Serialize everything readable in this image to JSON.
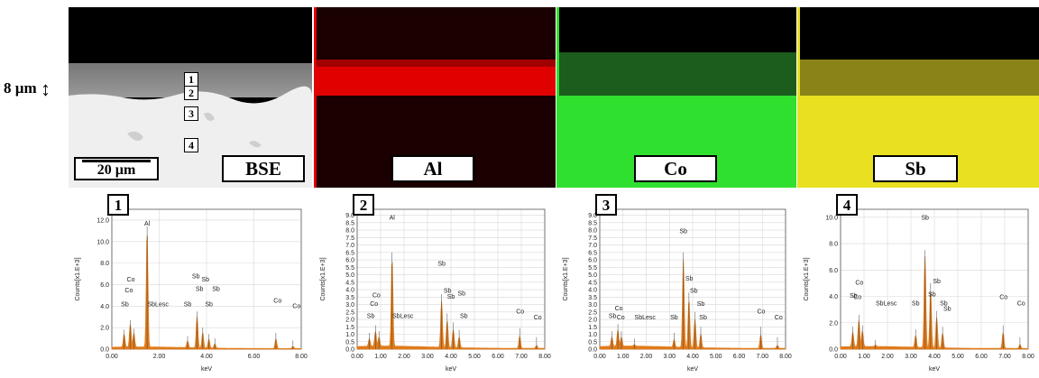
{
  "figure": {
    "thickness_label": "8 µm",
    "panels": [
      {
        "label": "BSE",
        "scalebar": "20 µm",
        "points": [
          "1",
          "2",
          "3",
          "4"
        ]
      },
      {
        "label": "Al"
      },
      {
        "label": "Co"
      },
      {
        "label": "Sb"
      }
    ],
    "colors": {
      "spectrum": "#e07b1a",
      "al_map": "#e00000",
      "co_map": "#2fe02f",
      "sb_map": "#e8e020"
    }
  },
  "chart_data": [
    {
      "type": "line",
      "panel_number": "1",
      "xlabel": "keV",
      "ylabel": "Counts[x1.E+3]",
      "xlim": [
        0,
        8
      ],
      "ylim": [
        0,
        13
      ],
      "x_ticks": [
        "0.00",
        "2.00",
        "4.00",
        "6.00",
        "8.00"
      ],
      "y_ticks": [
        "0.0",
        "2.0",
        "4.0",
        "6.0",
        "8.0",
        "10.0",
        "12.0"
      ],
      "peaks": [
        {
          "x": 0.52,
          "y": 1.2
        },
        {
          "x": 0.78,
          "y": 2.1
        },
        {
          "x": 0.93,
          "y": 1.3
        },
        {
          "x": 1.49,
          "y": 10.8
        },
        {
          "x": 3.2,
          "y": 0.6
        },
        {
          "x": 3.6,
          "y": 2.9
        },
        {
          "x": 3.84,
          "y": 1.4
        },
        {
          "x": 4.1,
          "y": 0.8
        },
        {
          "x": 4.35,
          "y": 0.4
        },
        {
          "x": 6.93,
          "y": 0.9
        },
        {
          "x": 7.65,
          "y": 0.2
        }
      ],
      "annotations": [
        {
          "text": "Al",
          "x": 1.49,
          "y": 11.5
        },
        {
          "text": "Co",
          "x": 0.8,
          "y": 6.3
        },
        {
          "text": "Co",
          "x": 0.72,
          "y": 5.3
        },
        {
          "text": "Sb",
          "x": 0.55,
          "y": 4.0
        },
        {
          "text": "SbLesc",
          "x": 1.95,
          "y": 4.0
        },
        {
          "text": "Sb",
          "x": 3.2,
          "y": 4.0
        },
        {
          "text": "Sb",
          "x": 3.55,
          "y": 6.6
        },
        {
          "text": "Sb",
          "x": 3.95,
          "y": 6.3
        },
        {
          "text": "Sb",
          "x": 3.7,
          "y": 5.4
        },
        {
          "text": "Sb",
          "x": 4.4,
          "y": 5.4
        },
        {
          "text": "Sb",
          "x": 4.1,
          "y": 4.0
        },
        {
          "text": "Co",
          "x": 7.0,
          "y": 4.3
        },
        {
          "text": "Co",
          "x": 7.8,
          "y": 3.8
        }
      ]
    },
    {
      "type": "line",
      "panel_number": "2",
      "xlabel": "keV",
      "ylabel": "Counts[x1.E+3]",
      "xlim": [
        0,
        8
      ],
      "ylim": [
        0,
        9.4
      ],
      "x_ticks": [
        "0.00",
        "1.00",
        "2.00",
        "3.00",
        "4.00",
        "5.00",
        "6.00",
        "7.00",
        "8.00"
      ],
      "y_ticks": [
        "0.0",
        "0.5",
        "1.0",
        "1.5",
        "2.0",
        "2.5",
        "3.0",
        "3.5",
        "4.0",
        "4.5",
        "5.0",
        "5.5",
        "6.0",
        "6.5",
        "7.0",
        "7.5",
        "8.0",
        "8.5",
        "9.0"
      ],
      "peaks": [
        {
          "x": 0.52,
          "y": 0.5
        },
        {
          "x": 0.78,
          "y": 1.0
        },
        {
          "x": 0.93,
          "y": 0.6
        },
        {
          "x": 1.49,
          "y": 5.9
        },
        {
          "x": 3.6,
          "y": 3.1
        },
        {
          "x": 3.84,
          "y": 1.8
        },
        {
          "x": 4.1,
          "y": 1.2
        },
        {
          "x": 4.35,
          "y": 0.7
        },
        {
          "x": 6.93,
          "y": 0.8
        },
        {
          "x": 7.65,
          "y": 0.2
        }
      ],
      "annotations": [
        {
          "text": "Al",
          "x": 1.49,
          "y": 8.7
        },
        {
          "text": "Co",
          "x": 0.82,
          "y": 3.5
        },
        {
          "text": "Co",
          "x": 0.72,
          "y": 2.9
        },
        {
          "text": "Sb",
          "x": 0.58,
          "y": 2.1
        },
        {
          "text": "SbLesc",
          "x": 1.95,
          "y": 2.1
        },
        {
          "text": "Sb",
          "x": 3.6,
          "y": 5.6
        },
        {
          "text": "Sb",
          "x": 3.85,
          "y": 3.8
        },
        {
          "text": "Sb",
          "x": 4.0,
          "y": 3.4
        },
        {
          "text": "Sb",
          "x": 4.45,
          "y": 3.6
        },
        {
          "text": "Sb",
          "x": 4.55,
          "y": 2.1
        },
        {
          "text": "Co",
          "x": 6.95,
          "y": 2.4
        },
        {
          "text": "Co",
          "x": 7.7,
          "y": 2.0
        }
      ]
    },
    {
      "type": "line",
      "panel_number": "3",
      "xlabel": "keV",
      "ylabel": "Counts[x1.E+3]",
      "xlim": [
        0,
        8
      ],
      "ylim": [
        0,
        9.4
      ],
      "x_ticks": [
        "0.00",
        "1.00",
        "2.00",
        "3.00",
        "4.00",
        "5.00",
        "6.00",
        "7.00",
        "8.00"
      ],
      "y_ticks": [
        "0.0",
        "0.5",
        "1.0",
        "1.5",
        "2.0",
        "2.5",
        "3.0",
        "3.5",
        "4.0",
        "4.5",
        "5.0",
        "5.5",
        "6.0",
        "6.5",
        "7.0",
        "7.5",
        "8.0",
        "8.5",
        "9.0"
      ],
      "peaks": [
        {
          "x": 0.52,
          "y": 0.6
        },
        {
          "x": 0.78,
          "y": 1.1
        },
        {
          "x": 0.93,
          "y": 0.6
        },
        {
          "x": 1.49,
          "y": 0.1
        },
        {
          "x": 3.2,
          "y": 0.5
        },
        {
          "x": 3.6,
          "y": 5.9
        },
        {
          "x": 3.84,
          "y": 3.2
        },
        {
          "x": 4.1,
          "y": 1.9
        },
        {
          "x": 4.35,
          "y": 0.9
        },
        {
          "x": 6.93,
          "y": 0.9
        },
        {
          "x": 7.65,
          "y": 0.2
        }
      ],
      "annotations": [
        {
          "text": "Sb",
          "x": 3.6,
          "y": 7.8
        },
        {
          "text": "Co",
          "x": 0.82,
          "y": 2.6
        },
        {
          "text": "Co",
          "x": 0.9,
          "y": 2.0
        },
        {
          "text": "Sb",
          "x": 0.55,
          "y": 2.1
        },
        {
          "text": "SbLesc",
          "x": 1.95,
          "y": 2.0
        },
        {
          "text": "Sb",
          "x": 3.2,
          "y": 2.0
        },
        {
          "text": "Sb",
          "x": 3.85,
          "y": 4.6
        },
        {
          "text": "Sb",
          "x": 4.05,
          "y": 3.8
        },
        {
          "text": "Sb",
          "x": 4.35,
          "y": 2.9
        },
        {
          "text": "Sb",
          "x": 4.45,
          "y": 2.0
        },
        {
          "text": "Co",
          "x": 6.95,
          "y": 2.4
        },
        {
          "text": "Co",
          "x": 7.7,
          "y": 2.0
        }
      ]
    },
    {
      "type": "line",
      "panel_number": "4",
      "xlabel": "keV",
      "ylabel": "Counts[x1.E+3]",
      "xlim": [
        0,
        8
      ],
      "ylim": [
        0,
        10.6
      ],
      "x_ticks": [
        "0.00",
        "1.00",
        "2.00",
        "3.00",
        "4.00",
        "5.00",
        "6.00",
        "7.00",
        "8.00"
      ],
      "y_ticks": [
        "0.0",
        "2.0",
        "4.0",
        "6.0",
        "8.0",
        "10.0"
      ],
      "peaks": [
        {
          "x": 0.52,
          "y": 1.1
        },
        {
          "x": 0.78,
          "y": 2.0
        },
        {
          "x": 0.93,
          "y": 1.2
        },
        {
          "x": 1.49,
          "y": 0.1
        },
        {
          "x": 3.2,
          "y": 0.9
        },
        {
          "x": 3.6,
          "y": 6.9
        },
        {
          "x": 3.84,
          "y": 4.4
        },
        {
          "x": 4.1,
          "y": 2.3
        },
        {
          "x": 4.35,
          "y": 1.1
        },
        {
          "x": 6.93,
          "y": 1.2
        },
        {
          "x": 7.65,
          "y": 0.3
        }
      ],
      "annotations": [
        {
          "text": "Sb",
          "x": 3.6,
          "y": 9.8
        },
        {
          "text": "Co",
          "x": 0.8,
          "y": 4.9
        },
        {
          "text": "Co",
          "x": 0.72,
          "y": 3.8
        },
        {
          "text": "Sb",
          "x": 0.55,
          "y": 3.9
        },
        {
          "text": "SbLesc",
          "x": 1.95,
          "y": 3.3
        },
        {
          "text": "Sb",
          "x": 3.2,
          "y": 3.3
        },
        {
          "text": "Sb",
          "x": 4.1,
          "y": 5.0
        },
        {
          "text": "Sb",
          "x": 3.9,
          "y": 4.0
        },
        {
          "text": "Sb",
          "x": 4.4,
          "y": 3.3
        },
        {
          "text": "Sb",
          "x": 4.55,
          "y": 2.9
        },
        {
          "text": "Co",
          "x": 6.95,
          "y": 3.8
        },
        {
          "text": "Co",
          "x": 7.7,
          "y": 3.3
        }
      ]
    }
  ]
}
